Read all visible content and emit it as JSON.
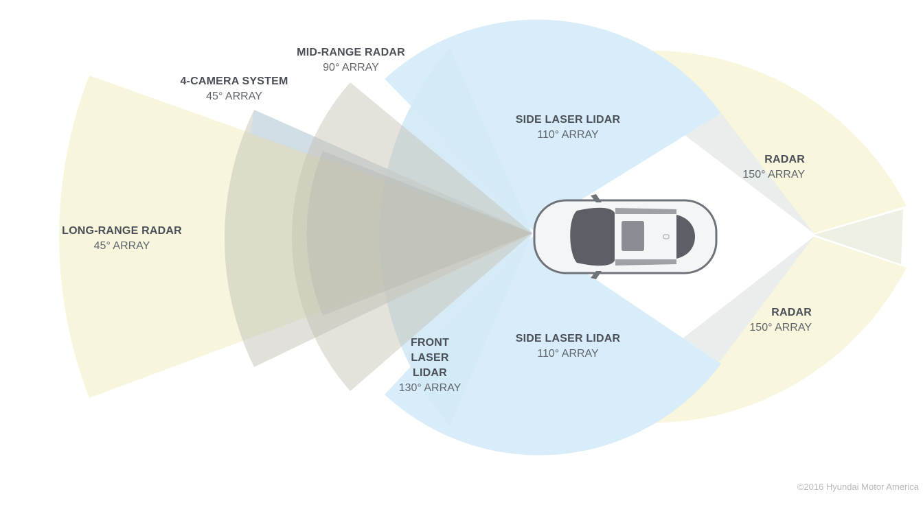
{
  "sensors": {
    "long_range_radar": {
      "name": "LONG-RANGE RADAR",
      "array": "45° ARRAY"
    },
    "camera_system": {
      "name": "4-CAMERA SYSTEM",
      "array": "45° ARRAY"
    },
    "mid_range_radar": {
      "name": "MID-RANGE RADAR",
      "array": "90° ARRAY"
    },
    "side_lidar_top": {
      "name": "SIDE LASER LIDAR",
      "array": "110° ARRAY"
    },
    "side_lidar_bottom": {
      "name": "SIDE LASER LIDAR",
      "array": "110° ARRAY"
    },
    "front_lidar": {
      "name_line1": "FRONT",
      "name_line2": "LASER",
      "name_line3": "LIDAR",
      "array": "130° ARRAY"
    },
    "rear_radar_top": {
      "name": "RADAR",
      "array": "150° ARRAY"
    },
    "rear_radar_bottom": {
      "name": "RADAR",
      "array": "150° ARRAY"
    }
  },
  "copyright": "©2016 Hyundai Motor America",
  "colors": {
    "radar_yellow": "#f7f4d6",
    "lidar_blue": "#d7ecf8",
    "camera_overlay": "#c9c2b4",
    "car_body": "#f4f5f6",
    "car_glass": "#5c6066",
    "label_text": "#4a4f57"
  }
}
